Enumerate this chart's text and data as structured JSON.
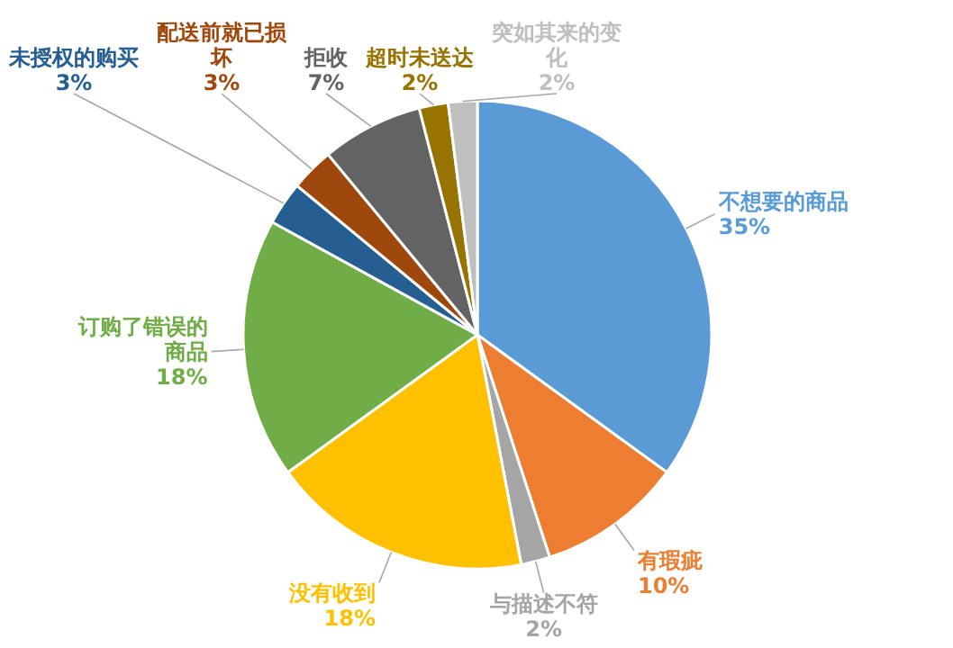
{
  "chart_data": {
    "type": "pie",
    "categories": [
      "不想要的商品",
      "有瑕疵",
      "与描述不符",
      "没有收到",
      "订购了错误的商品",
      "未授权的购买",
      "配送前就已损坏",
      "拒收",
      "超时未送达",
      "突如其来的变化"
    ],
    "values": [
      35,
      10,
      2,
      18,
      18,
      3,
      3,
      7,
      2,
      2
    ],
    "colors": [
      "#5b9bd5",
      "#ed7d31",
      "#a5a5a5",
      "#ffc000",
      "#70ad47",
      "#255e91",
      "#9e480e",
      "#636363",
      "#997300",
      "#bfbfbf"
    ],
    "value_labels": [
      "35%",
      "10%",
      "2%",
      "18%",
      "18%",
      "3%",
      "3%",
      "7%",
      "2%",
      "2%"
    ]
  }
}
